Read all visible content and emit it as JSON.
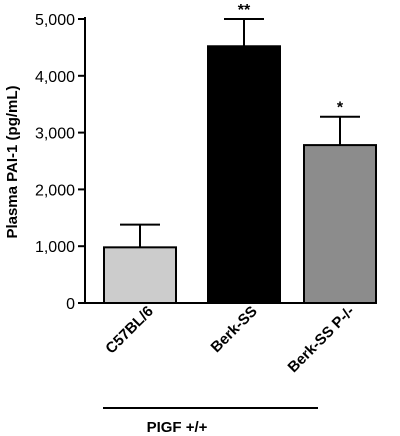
{
  "chart_data": {
    "type": "bar",
    "title": "",
    "xlabel": "",
    "ylabel": "Plasma PAI-1 (pg/mL)",
    "ylim": [
      0,
      5000
    ],
    "yticks": [
      0,
      1000,
      2000,
      3000,
      4000,
      5000
    ],
    "ytick_labels": [
      "0",
      "1,000",
      "2,000",
      "3,000",
      "4,000",
      "5,000"
    ],
    "categories": [
      "C57BL/6",
      "Berk-SS",
      "Berk-SS P-/-"
    ],
    "values": [
      980,
      4520,
      2780
    ],
    "error_upper": [
      1380,
      5000,
      3280
    ],
    "significance": [
      "",
      "**",
      "*"
    ],
    "colors": [
      "#cccccc",
      "#000000",
      "#8c8c8c"
    ],
    "grid": false,
    "group_label": "PIGF +/+"
  }
}
